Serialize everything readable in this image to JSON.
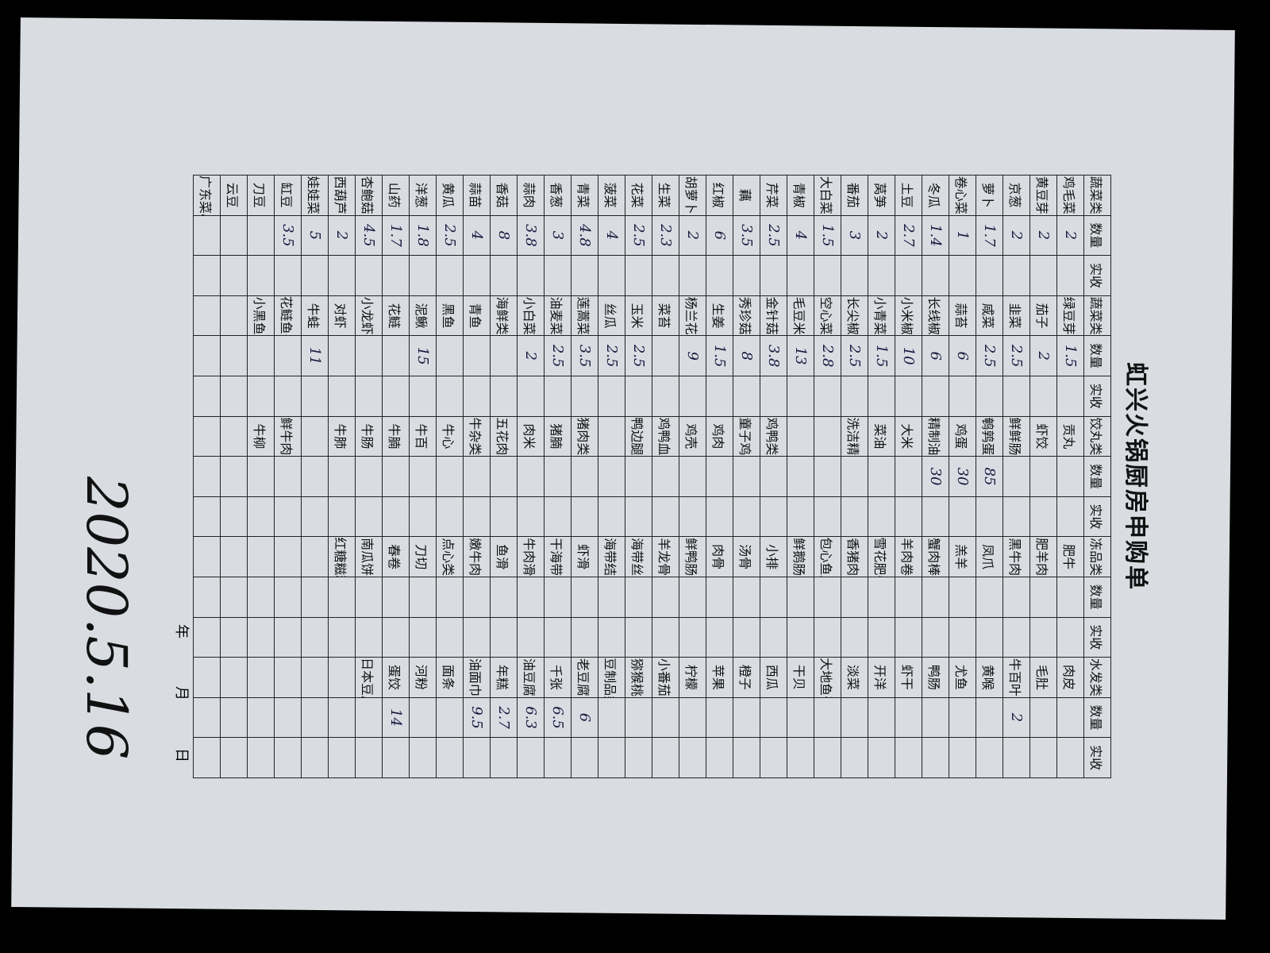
{
  "title": "虹兴火锅厨房申购单",
  "table": {
    "header": [
      "蔬菜类",
      "数量",
      "实收",
      "蔬菜类",
      "数量",
      "实收",
      "饺丸类",
      "数量",
      "实收",
      "冻品类",
      "数量",
      "实收",
      "水发类",
      "数量",
      "实收"
    ],
    "rows": [
      [
        {
          "item": "鸡毛菜",
          "qty": 2
        },
        {
          "item": "绿豆芽",
          "qty": 1.5
        },
        {
          "item": "贡丸"
        },
        {
          "item": "肥牛"
        },
        {
          "item": "肉皮"
        }
      ],
      [
        {
          "item": "黄豆芽",
          "qty": 2
        },
        {
          "item": "茄子",
          "qty": 2
        },
        {
          "item": "虾饺"
        },
        {
          "item": "肥羊肉"
        },
        {
          "item": "毛肚"
        }
      ],
      [
        {
          "item": "京葱",
          "qty": 2
        },
        {
          "item": "韭菜",
          "qty": 2.5
        },
        {
          "item": "鲜鲜肠"
        },
        {
          "item": "黑牛肉"
        },
        {
          "item": "牛百叶",
          "qty": 2
        }
      ],
      [
        {
          "item": "萝卜",
          "qty": 1.7
        },
        {
          "item": "咸菜",
          "qty": 2.5
        },
        {
          "item": "鹌鹑蛋",
          "qty": 85
        },
        {
          "item": "凤爪"
        },
        {
          "item": "黄喉"
        }
      ],
      [
        {
          "item": "卷心菜",
          "qty": 1
        },
        {
          "item": "蒜苔",
          "qty": 6
        },
        {
          "item": "鸡蛋",
          "qty": 30
        },
        {
          "item": "羔羊"
        },
        {
          "item": "尤鱼"
        }
      ],
      [
        {
          "item": "冬瓜",
          "qty": 1.4
        },
        {
          "item": "长线椒",
          "qty": 6
        },
        {
          "item": "精制油",
          "qty": 30
        },
        {
          "item": "蟹肉棒"
        },
        {
          "item": "鸭肠"
        }
      ],
      [
        {
          "item": "土豆",
          "qty": 2.7
        },
        {
          "item": "小米椒",
          "qty": 10
        },
        {
          "item": "大米"
        },
        {
          "item": "羊肉卷"
        },
        {
          "item": "虾干"
        }
      ],
      [
        {
          "item": "莴笋",
          "qty": 2
        },
        {
          "item": "小青菜",
          "qty": 1.5
        },
        {
          "item": "菜油"
        },
        {
          "item": "雪花肥牛"
        },
        {
          "item": "开洋"
        }
      ],
      [
        {
          "item": "番茄",
          "qty": 3
        },
        {
          "item": "长尖椒",
          "qty": 2.5
        },
        {
          "item": "洗洁精"
        },
        {
          "item": "香猪肉"
        },
        {
          "item": "淡菜"
        }
      ],
      [
        {
          "item": "大白菜",
          "qty": 1.5
        },
        {
          "item": "空心菜",
          "qty": 2.8
        },
        null,
        {
          "item": "包心鱼丸"
        },
        {
          "item": "大地鱼干"
        }
      ],
      [
        {
          "item": "青椒",
          "qty": 4
        },
        {
          "item": "毛豆米",
          "qty": 13
        },
        null,
        {
          "item": "鲜鹅肠"
        },
        {
          "item": "干贝"
        }
      ],
      [
        {
          "item": "芹菜",
          "qty": 2.5
        },
        {
          "item": "金针菇",
          "qty": 3.8
        },
        {
          "item": "鸡鸭类"
        },
        {
          "item": "小排"
        },
        {
          "item": "西瓜"
        }
      ],
      [
        {
          "item": "藕",
          "qty": 3.5
        },
        {
          "item": "秀珍菇",
          "qty": 8
        },
        {
          "item": "童子鸡"
        },
        {
          "item": "汤骨"
        },
        {
          "item": "橙子"
        }
      ],
      [
        {
          "item": "红椒",
          "qty": 6
        },
        {
          "item": "生姜",
          "qty": 1.5
        },
        {
          "item": "鸡肉"
        },
        {
          "item": "肉骨"
        },
        {
          "item": "苹果"
        }
      ],
      [
        {
          "item": "胡萝卜",
          "qty": 2
        },
        {
          "item": "杨兰花",
          "qty": 9
        },
        {
          "item": "鸡壳"
        },
        {
          "item": "鲜鸭肠"
        },
        {
          "item": "柠檬"
        }
      ],
      [
        {
          "item": "生菜",
          "qty": 2.3
        },
        {
          "item": "菜苔"
        },
        {
          "item": "鸡鸭血"
        },
        {
          "item": "羊龙骨"
        },
        {
          "item": "小番茄"
        }
      ],
      [
        {
          "item": "花菜",
          "qty": 2.5
        },
        {
          "item": "玉米",
          "qty": 2.5
        },
        {
          "item": "鸭边腿"
        },
        {
          "item": "海带丝"
        },
        {
          "item": "猕猴桃"
        }
      ],
      [
        {
          "item": "菠菜",
          "qty": 4
        },
        {
          "item": "丝瓜",
          "qty": 2.5
        },
        null,
        {
          "item": "海带结"
        },
        {
          "item": "豆制品类"
        }
      ],
      [
        {
          "item": "青菜",
          "qty": 4.8
        },
        {
          "item": "莲蒿菜",
          "qty": 3.5
        },
        {
          "item": "猪肉类"
        },
        {
          "item": "虾滑"
        },
        {
          "item": "老豆腐",
          "qty": 6
        }
      ],
      [
        {
          "item": "香葱",
          "qty": 3
        },
        {
          "item": "油麦菜",
          "qty": 2.5
        },
        {
          "item": "猪腩"
        },
        {
          "item": "干海带"
        },
        {
          "item": "千张",
          "qty": 6.5
        }
      ],
      [
        {
          "item": "蒜肉",
          "qty": 3.8
        },
        {
          "item": "小白菜",
          "qty": 2
        },
        {
          "item": "肉米"
        },
        {
          "item": "牛肉滑"
        },
        {
          "item": "油豆腐",
          "qty": 6.3
        }
      ],
      [
        {
          "item": "香菇",
          "qty": 8
        },
        {
          "item": "海鲜类"
        },
        {
          "item": "五花肉"
        },
        {
          "item": "鱼滑"
        },
        {
          "item": "年糕",
          "qty": 2.7
        }
      ],
      [
        {
          "item": "蒜苗",
          "qty": 4
        },
        {
          "item": "青鱼"
        },
        {
          "item": "牛杂类"
        },
        {
          "item": "嫩牛肉"
        },
        {
          "item": "油面巾",
          "qty": 9.5
        }
      ],
      [
        {
          "item": "黄瓜",
          "qty": 2.5
        },
        {
          "item": "黑鱼"
        },
        {
          "item": "牛心"
        },
        {
          "item": "点心类"
        },
        {
          "item": "面条"
        }
      ],
      [
        {
          "item": "洋葱",
          "qty": 1.8
        },
        {
          "item": "泥鳅",
          "qty": 15
        },
        {
          "item": "牛百"
        },
        {
          "item": "刀切"
        },
        {
          "item": "河粉"
        }
      ],
      [
        {
          "item": "山药",
          "qty": 1.7
        },
        {
          "item": "花鲢"
        },
        {
          "item": "牛腩"
        },
        {
          "item": "春卷"
        },
        {
          "item": "蛋饺",
          "qty": 14
        }
      ],
      [
        {
          "item": "杏鲍菇",
          "qty": 4.5
        },
        {
          "item": "小龙虾"
        },
        {
          "item": "牛肠"
        },
        {
          "item": "南瓜饼"
        },
        {
          "item": "日本豆腐"
        }
      ],
      [
        {
          "item": "西葫芦",
          "qty": 2
        },
        {
          "item": "对虾"
        },
        {
          "item": "牛肺"
        },
        {
          "item": "红糖糍粑"
        },
        null
      ],
      [
        {
          "item": "娃娃菜",
          "qty": 5
        },
        {
          "item": "牛蛙",
          "qty": 11
        },
        null,
        null,
        null
      ],
      [
        {
          "item": "缸豆",
          "qty": 3.5
        },
        {
          "item": "花鲢鱼头"
        },
        {
          "item": "鲜牛肉"
        },
        null,
        null
      ],
      [
        {
          "item": "刀豆"
        },
        {
          "item": "小黑鱼"
        },
        {
          "item": "牛柳"
        },
        null,
        null
      ],
      [
        {
          "item": "云豆"
        },
        null,
        null,
        null,
        null
      ],
      [
        {
          "item": "广东菜心"
        },
        null,
        null,
        null,
        null
      ]
    ]
  },
  "footer": {
    "date_labels": [
      "年",
      "月",
      "日"
    ],
    "handwritten_date": "2020.5.16"
  }
}
